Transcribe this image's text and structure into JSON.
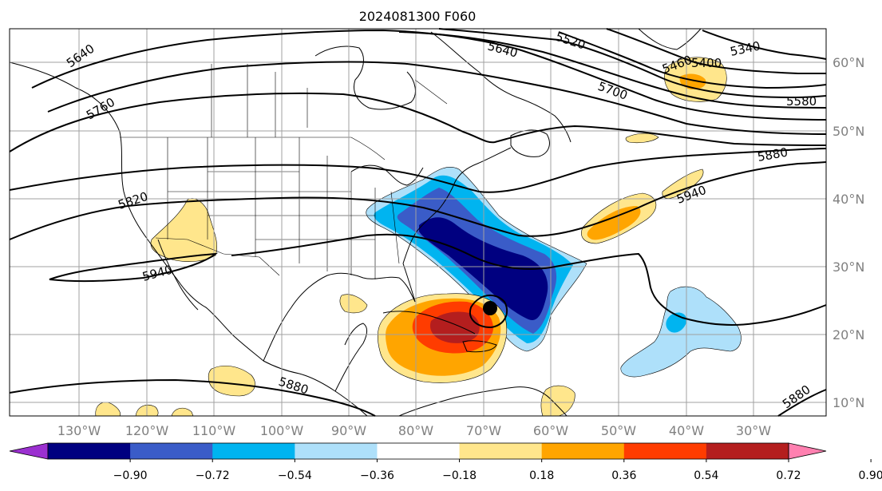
{
  "title": "2024081300 F060",
  "longitude_labels": [
    "130°W",
    "120°W",
    "110°W",
    "100°W",
    "90°W",
    "80°W",
    "70°W",
    "60°W",
    "50°W",
    "40°W",
    "30°W"
  ],
  "latitude_labels": [
    "60°N",
    "50°N",
    "40°N",
    "30°N",
    "20°N",
    "10°N"
  ],
  "contour_labels": [
    "5640",
    "5520",
    "5340",
    "5400",
    "5460",
    "5580",
    "5700",
    "5640",
    "5760",
    "5820",
    "5880",
    "5940",
    "5940",
    "5880",
    "5880"
  ],
  "colorbar": {
    "tick_labels": [
      "−0.90",
      "−0.72",
      "−0.54",
      "−0.36",
      "−0.18",
      "0.18",
      "0.36",
      "0.54",
      "0.72",
      "0.90"
    ],
    "bins": [
      {
        "range": "< -0.90",
        "color": "#9b30d0"
      },
      {
        "range": "-0.90 to -0.72",
        "color": "#000080"
      },
      {
        "range": "-0.72 to -0.54",
        "color": "#3a5cc8"
      },
      {
        "range": "-0.54 to -0.36",
        "color": "#00b4f0"
      },
      {
        "range": "-0.36 to -0.18",
        "color": "#aee0fa"
      },
      {
        "range": "-0.18 to 0.18",
        "color": "#ffffff"
      },
      {
        "range": "0.18 to 0.36",
        "color": "#ffe68c"
      },
      {
        "range": "0.36 to 0.54",
        "color": "#ffa500"
      },
      {
        "range": "0.54 to 0.72",
        "color": "#ff3c00"
      },
      {
        "range": "0.72 to 0.90",
        "color": "#b41e1e"
      },
      {
        "range": "> 0.90",
        "color": "#ff80b0"
      }
    ]
  },
  "storm_marker_icon": "filled-circle",
  "colors": {
    "contour": "#000000",
    "grid": "#a0a0a0",
    "coast": "#000000"
  }
}
